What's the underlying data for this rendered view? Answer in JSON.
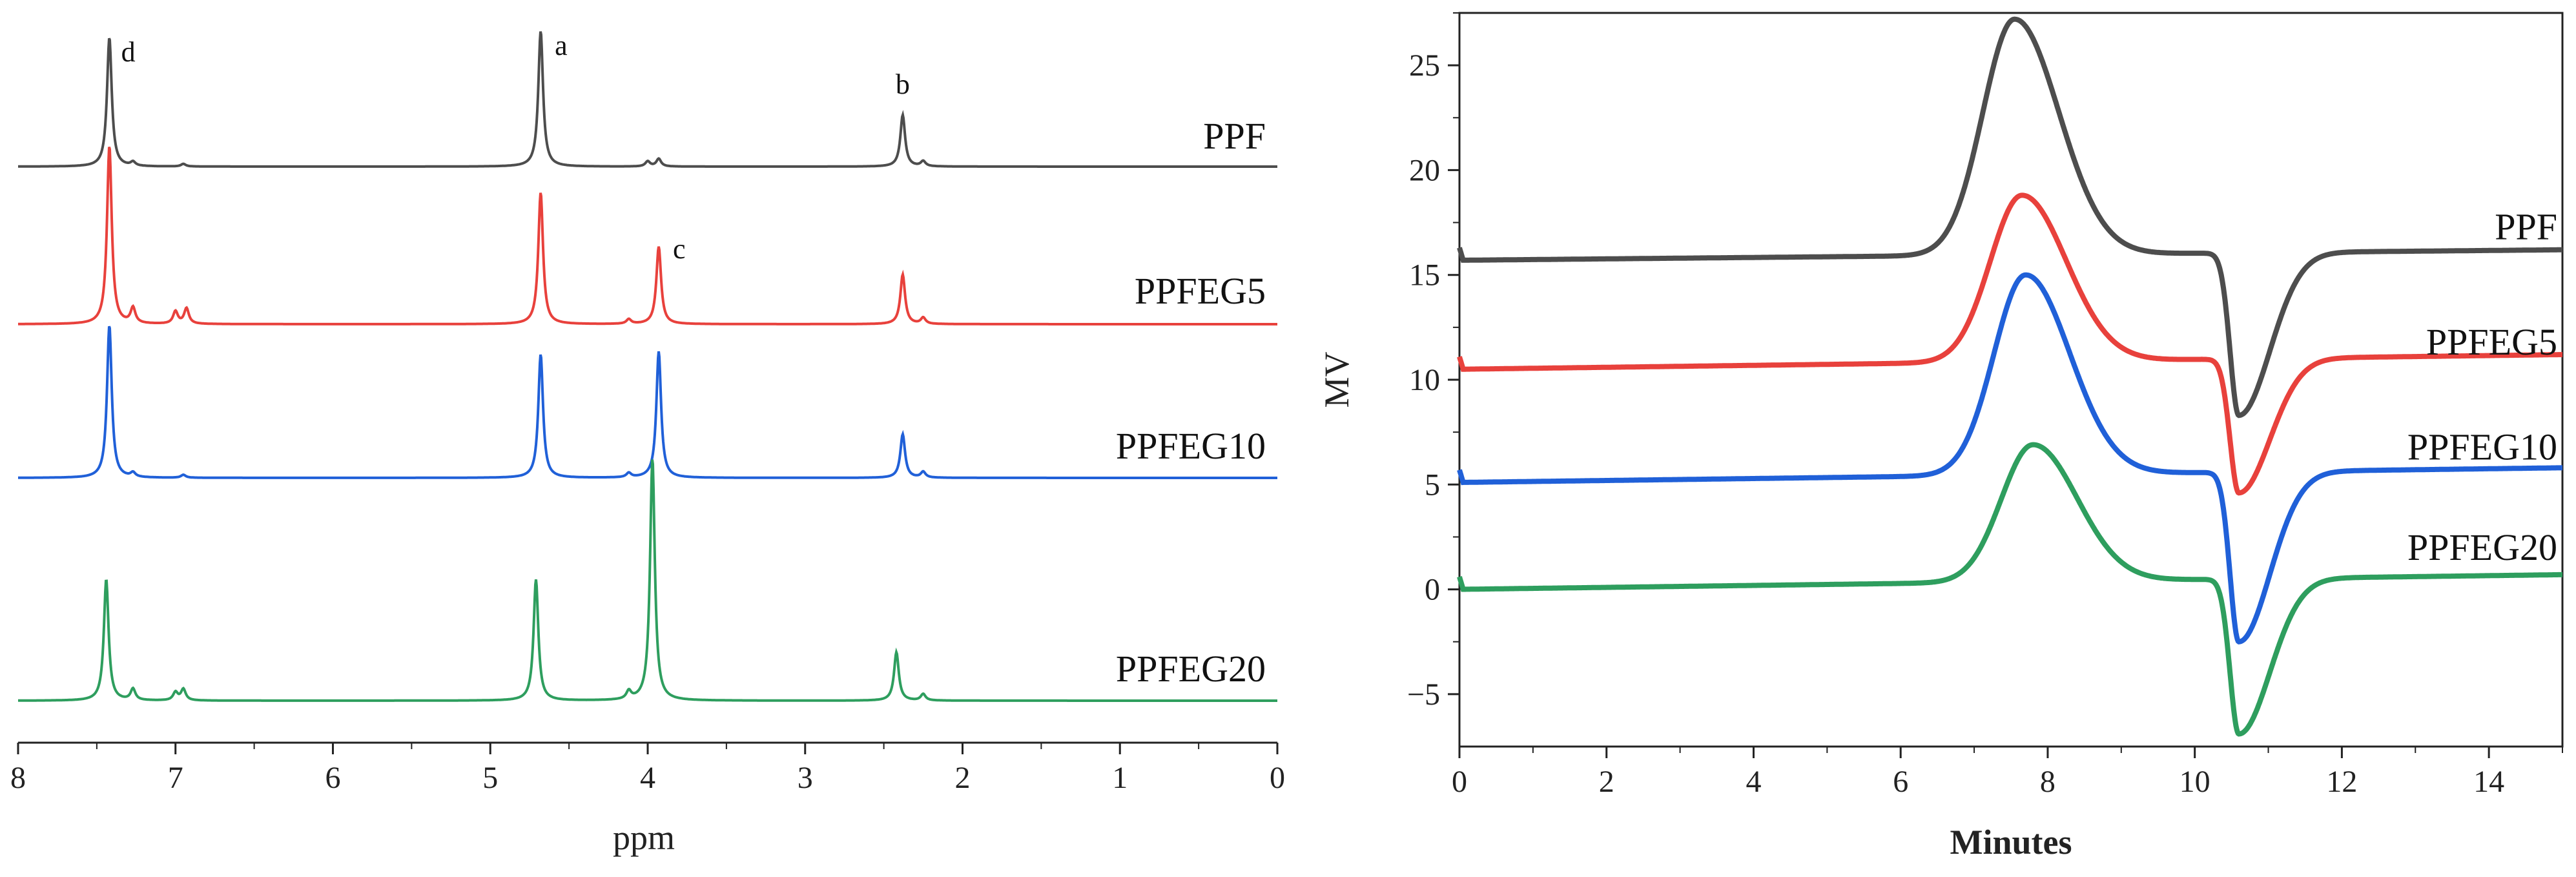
{
  "chart_data": [
    {
      "id": "nmr",
      "type": "line",
      "title": "",
      "xlabel": "ppm",
      "ylabel": "",
      "xlim": [
        8,
        0
      ],
      "x_reversed": true,
      "xticks": [
        "8",
        "7",
        "6",
        "5",
        "4",
        "3",
        "2",
        "1",
        "0"
      ],
      "grid": false,
      "series": [
        {
          "name": "PPF",
          "color": "#4d4d4d",
          "baseline": 1.0,
          "peaks": [
            {
              "ppm": 7.42,
              "h": 1.0
            },
            {
              "ppm": 7.27,
              "h": 0.03
            },
            {
              "ppm": 6.95,
              "h": 0.02
            },
            {
              "ppm": 4.68,
              "h": 1.05
            },
            {
              "ppm": 4.0,
              "h": 0.04
            },
            {
              "ppm": 3.93,
              "h": 0.06
            },
            {
              "ppm": 2.38,
              "h": 0.4
            },
            {
              "ppm": 2.25,
              "h": 0.04
            }
          ]
        },
        {
          "name": "PPFEG5",
          "color": "#e8413c",
          "baseline": 0.0,
          "peaks": [
            {
              "ppm": 7.42,
              "h": 1.15
            },
            {
              "ppm": 7.27,
              "h": 0.1
            },
            {
              "ppm": 7.0,
              "h": 0.08
            },
            {
              "ppm": 6.93,
              "h": 0.1
            },
            {
              "ppm": 4.68,
              "h": 0.85
            },
            {
              "ppm": 4.12,
              "h": 0.03
            },
            {
              "ppm": 3.93,
              "h": 0.5
            },
            {
              "ppm": 2.38,
              "h": 0.32
            },
            {
              "ppm": 2.25,
              "h": 0.04
            }
          ]
        },
        {
          "name": "PPFEG10",
          "color": "#2060d8",
          "baseline": 0.0,
          "peaks": [
            {
              "ppm": 7.42,
              "h": 1.05
            },
            {
              "ppm": 7.27,
              "h": 0.03
            },
            {
              "ppm": 6.95,
              "h": 0.02
            },
            {
              "ppm": 4.68,
              "h": 0.85
            },
            {
              "ppm": 4.12,
              "h": 0.03
            },
            {
              "ppm": 3.93,
              "h": 0.87
            },
            {
              "ppm": 2.38,
              "h": 0.3
            },
            {
              "ppm": 2.25,
              "h": 0.04
            }
          ]
        },
        {
          "name": "PPFEG20",
          "color": "#2e9e5e",
          "baseline": 0.0,
          "peaks": [
            {
              "ppm": 7.44,
              "h": 0.75
            },
            {
              "ppm": 7.27,
              "h": 0.07
            },
            {
              "ppm": 7.0,
              "h": 0.05
            },
            {
              "ppm": 6.95,
              "h": 0.07
            },
            {
              "ppm": 4.71,
              "h": 0.75
            },
            {
              "ppm": 4.12,
              "h": 0.05
            },
            {
              "ppm": 3.97,
              "h": 1.5
            },
            {
              "ppm": 2.42,
              "h": 0.3
            },
            {
              "ppm": 2.25,
              "h": 0.04
            }
          ]
        }
      ],
      "annotations": [
        {
          "text": "d",
          "ppm": 7.3
        },
        {
          "text": "a",
          "ppm": 4.55
        },
        {
          "text": "b",
          "ppm": 2.38
        },
        {
          "text": "c",
          "ppm": 3.8
        }
      ]
    },
    {
      "id": "gpc",
      "type": "line",
      "title": "",
      "xlabel": "Minutes",
      "ylabel": "MV",
      "xlim": [
        0,
        15
      ],
      "ylim": [
        -7.5,
        27.5
      ],
      "xticks": [
        "0",
        "2",
        "4",
        "6",
        "8",
        "10",
        "12",
        "14"
      ],
      "yticks": [
        "−5",
        "0",
        "5",
        "10",
        "15",
        "20",
        "25"
      ],
      "grid": false,
      "series": [
        {
          "name": "PPF",
          "color": "#4d4d4d",
          "base_start": 15.7,
          "base_end": 16.2,
          "peak_time": 7.55,
          "peak_value": 27.2,
          "dip_time": 10.6,
          "dip_value": 8.3
        },
        {
          "name": "PPFEG5",
          "color": "#e8413c",
          "base_start": 10.5,
          "base_end": 11.2,
          "peak_time": 7.65,
          "peak_value": 18.8,
          "dip_time": 10.6,
          "dip_value": 4.6
        },
        {
          "name": "PPFEG10",
          "color": "#2060d8",
          "base_start": 5.1,
          "base_end": 5.8,
          "peak_time": 7.7,
          "peak_value": 15.0,
          "dip_time": 10.6,
          "dip_value": -2.5
        },
        {
          "name": "PPFEG20",
          "color": "#2e9e5e",
          "base_start": 0.0,
          "base_end": 0.7,
          "peak_time": 7.8,
          "peak_value": 6.9,
          "dip_time": 10.6,
          "dip_value": -6.9
        }
      ]
    }
  ]
}
